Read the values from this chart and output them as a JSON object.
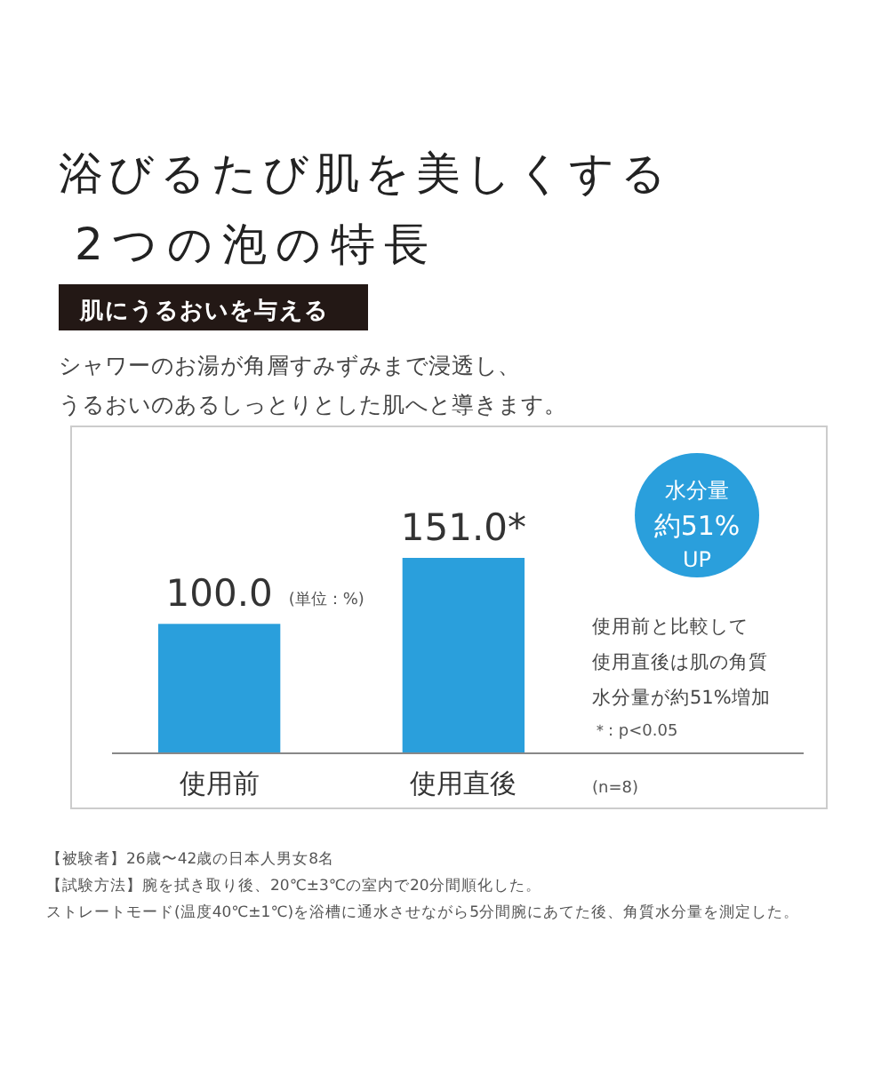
{
  "chart_data": {
    "type": "bar",
    "title": "浴びるたび肌を美しくする",
    "subtitle": "2つの泡の特長",
    "categories": [
      "使用前",
      "使用直後"
    ],
    "values": [
      100.0,
      151.0
    ],
    "value_labels": [
      "100.0",
      "151.0*"
    ],
    "color": "#2a9fdc",
    "tick_labels": "x",
    "annotations": [
      "肌にうるおいを与える",
      "シャワーのお湯が角層すみずみまで浸透し、",
      "うるおいのあるしっとりとした肌へと導きます。",
      "(単位：%)",
      "水分量",
      "約51%",
      "UP",
      "使用前と比較して",
      "使用直後は肌の角質",
      "水分量が約51%増加",
      "＊: p<0.05",
      "(n=8)",
      "【被験者】26歳〜42歳の日本人男女8名",
      "【試験方法】腕を拭き取り後、20℃±3℃の室内で20分間順化した。",
      "ストレートモード(温度40℃±1℃)を浴槽に通水させながら5分間腕にあてた後、角質水分量を測定した。"
    ]
  }
}
